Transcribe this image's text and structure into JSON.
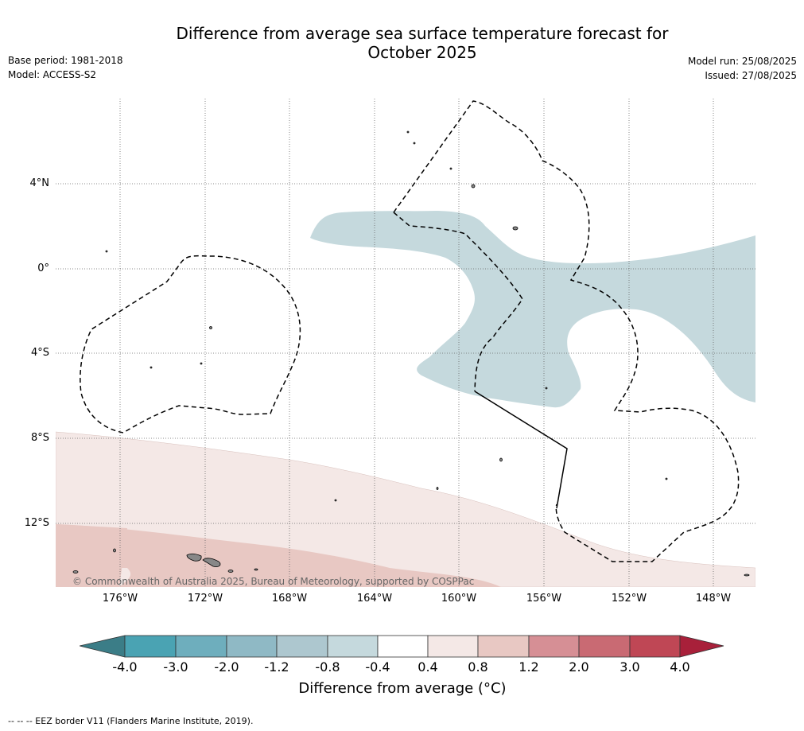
{
  "header": {
    "title_line1": "Difference from average sea surface temperature forecast for",
    "title_line2": "October 2025",
    "base_period": "Base period: 1981-2018",
    "model": "Model: ACCESS-S2",
    "model_run": "Model run: 25/08/2025",
    "issued": "Issued: 27/08/2025"
  },
  "map": {
    "lat_ticks": [
      "4°N",
      "0°",
      "4°S",
      "8°S",
      "12°S"
    ],
    "lon_ticks": [
      "176°W",
      "172°W",
      "168°W",
      "164°W",
      "160°W",
      "156°W",
      "152°W",
      "148°W"
    ],
    "copyright": "© Commonwealth of Australia 2025, Bureau of Meteorology, supported by COSPPac",
    "colors": {
      "cool_anomaly": "#c5d9dd",
      "warm_light": "#f4e8e6",
      "warm_medium": "#e8c8c3",
      "land": "#888888"
    }
  },
  "colorbar": {
    "labels": [
      "-4.0",
      "-3.0",
      "-2.0",
      "-1.2",
      "-0.8",
      "-0.4",
      "0.4",
      "0.8",
      "1.2",
      "2.0",
      "3.0",
      "4.0"
    ],
    "colors": [
      "#3b7d87",
      "#4aa3b3",
      "#6eaebd",
      "#8fb9c5",
      "#adc7cf",
      "#c5d9dd",
      "#ffffff",
      "#f4e8e6",
      "#e8c8c3",
      "#d68f95",
      "#c96a73",
      "#bf4755",
      "#a8203a"
    ],
    "title": "Difference from average (°C)"
  },
  "footnote": "--  --  -- EEZ border V11 (Flanders Marine Institute, 2019)."
}
